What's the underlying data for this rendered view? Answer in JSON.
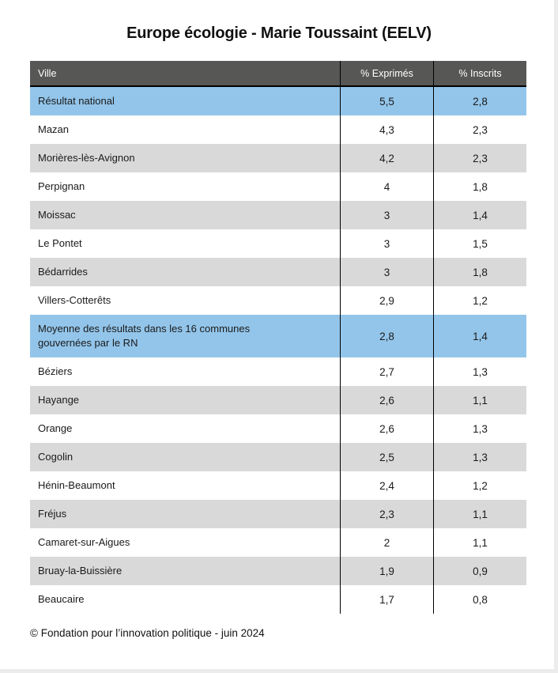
{
  "title": "Europe écologie - Marie Toussaint (EELV)",
  "table": {
    "columns": [
      "Ville",
      "% Exprimés",
      "% Inscrits"
    ],
    "rows": [
      {
        "ville": "Résultat national",
        "exprimes": "5,5",
        "inscrits": "2,8",
        "shade": "highlight"
      },
      {
        "ville": "Mazan",
        "exprimes": "4,3",
        "inscrits": "2,3",
        "shade": "plain"
      },
      {
        "ville": "Morières-lès-Avignon",
        "exprimes": "4,2",
        "inscrits": "2,3",
        "shade": "alt"
      },
      {
        "ville": "Perpignan",
        "exprimes": "4",
        "inscrits": "1,8",
        "shade": "plain"
      },
      {
        "ville": "Moissac",
        "exprimes": "3",
        "inscrits": "1,4",
        "shade": "alt"
      },
      {
        "ville": "Le Pontet",
        "exprimes": "3",
        "inscrits": "1,5",
        "shade": "plain"
      },
      {
        "ville": "Bédarrides",
        "exprimes": "3",
        "inscrits": "1,8",
        "shade": "alt"
      },
      {
        "ville": "Villers-Cotterêts",
        "exprimes": "2,9",
        "inscrits": "1,2",
        "shade": "plain"
      },
      {
        "ville": "Moyenne des résultats dans les 16 communes\ngouvernées par le RN",
        "exprimes": "2,8",
        "inscrits": "1,4",
        "shade": "highlight"
      },
      {
        "ville": "Béziers",
        "exprimes": "2,7",
        "inscrits": "1,3",
        "shade": "plain"
      },
      {
        "ville": "Hayange",
        "exprimes": "2,6",
        "inscrits": "1,1",
        "shade": "alt"
      },
      {
        "ville": "Orange",
        "exprimes": "2,6",
        "inscrits": "1,3",
        "shade": "plain"
      },
      {
        "ville": "Cogolin",
        "exprimes": "2,5",
        "inscrits": "1,3",
        "shade": "alt"
      },
      {
        "ville": "Hénin-Beaumont",
        "exprimes": "2,4",
        "inscrits": "1,2",
        "shade": "plain"
      },
      {
        "ville": "Fréjus",
        "exprimes": "2,3",
        "inscrits": "1,1",
        "shade": "alt"
      },
      {
        "ville": "Camaret-sur-Aigues",
        "exprimes": "2",
        "inscrits": "1,1",
        "shade": "plain"
      },
      {
        "ville": "Bruay-la-Buissière",
        "exprimes": "1,9",
        "inscrits": "0,9",
        "shade": "alt"
      },
      {
        "ville": "Beaucaire",
        "exprimes": "1,7",
        "inscrits": "0,8",
        "shade": "plain"
      }
    ]
  },
  "footer": {
    "credit": "© Fondation pour l’innovation politique - juin 2024"
  },
  "colors": {
    "header_bg": "#575756",
    "header_text": "#ffffff",
    "highlight_row": "#93c5ea",
    "alt_row": "#d9d9d9",
    "body_text": "#1a1a1a"
  },
  "chart_data": {
    "type": "table",
    "title": "Europe écologie - Marie Toussaint (EELV)",
    "columns": [
      "Ville",
      "% Exprimés",
      "% Inscrits"
    ],
    "rows": [
      [
        "Résultat national",
        5.5,
        2.8
      ],
      [
        "Mazan",
        4.3,
        2.3
      ],
      [
        "Morières-lès-Avignon",
        4.2,
        2.3
      ],
      [
        "Perpignan",
        4,
        1.8
      ],
      [
        "Moissac",
        3,
        1.4
      ],
      [
        "Le Pontet",
        3,
        1.5
      ],
      [
        "Bédarrides",
        3,
        1.8
      ],
      [
        "Villers-Cotterêts",
        2.9,
        1.2
      ],
      [
        "Moyenne des résultats dans les 16 communes gouvernées par le RN",
        2.8,
        1.4
      ],
      [
        "Béziers",
        2.7,
        1.3
      ],
      [
        "Hayange",
        2.6,
        1.1
      ],
      [
        "Orange",
        2.6,
        1.3
      ],
      [
        "Cogolin",
        2.5,
        1.3
      ],
      [
        "Hénin-Beaumont",
        2.4,
        1.2
      ],
      [
        "Fréjus",
        2.3,
        1.1
      ],
      [
        "Camaret-sur-Aigues",
        2,
        1.1
      ],
      [
        "Bruay-la-Buissière",
        1.9,
        0.9
      ],
      [
        "Beaucaire",
        1.7,
        0.8
      ]
    ],
    "highlighted_rows": [
      "Résultat national",
      "Moyenne des résultats dans les 16 communes gouvernées par le RN"
    ],
    "footer": "© Fondation pour l’innovation politique - juin 2024"
  }
}
